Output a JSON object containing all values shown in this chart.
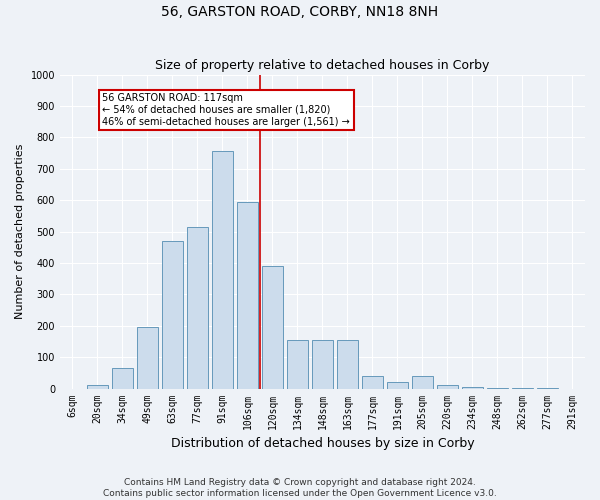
{
  "title": "56, GARSTON ROAD, CORBY, NN18 8NH",
  "subtitle": "Size of property relative to detached houses in Corby",
  "xlabel": "Distribution of detached houses by size in Corby",
  "ylabel": "Number of detached properties",
  "footer_line1": "Contains HM Land Registry data © Crown copyright and database right 2024.",
  "footer_line2": "Contains public sector information licensed under the Open Government Licence v3.0.",
  "annotation_line1": "56 GARSTON ROAD: 117sqm",
  "annotation_line2": "← 54% of detached houses are smaller (1,820)",
  "annotation_line3": "46% of semi-detached houses are larger (1,561) →",
  "bar_color": "#ccdcec",
  "bar_edge_color": "#6699bb",
  "marker_line_color": "#cc0000",
  "marker_bin_index": 7,
  "categories": [
    "6sqm",
    "20sqm",
    "34sqm",
    "49sqm",
    "63sqm",
    "77sqm",
    "91sqm",
    "106sqm",
    "120sqm",
    "134sqm",
    "148sqm",
    "163sqm",
    "177sqm",
    "191sqm",
    "205sqm",
    "220sqm",
    "234sqm",
    "248sqm",
    "262sqm",
    "277sqm",
    "291sqm"
  ],
  "values": [
    0,
    12,
    65,
    195,
    470,
    515,
    755,
    595,
    390,
    155,
    155,
    155,
    40,
    22,
    40,
    10,
    5,
    2,
    1,
    1,
    0
  ],
  "ylim": [
    0,
    1000
  ],
  "yticks": [
    0,
    100,
    200,
    300,
    400,
    500,
    600,
    700,
    800,
    900,
    1000
  ],
  "background_color": "#eef2f7",
  "grid_color": "#ffffff",
  "title_fontsize": 10,
  "subtitle_fontsize": 9,
  "ylabel_fontsize": 8,
  "xlabel_fontsize": 9,
  "tick_fontsize": 7,
  "footer_fontsize": 6.5
}
